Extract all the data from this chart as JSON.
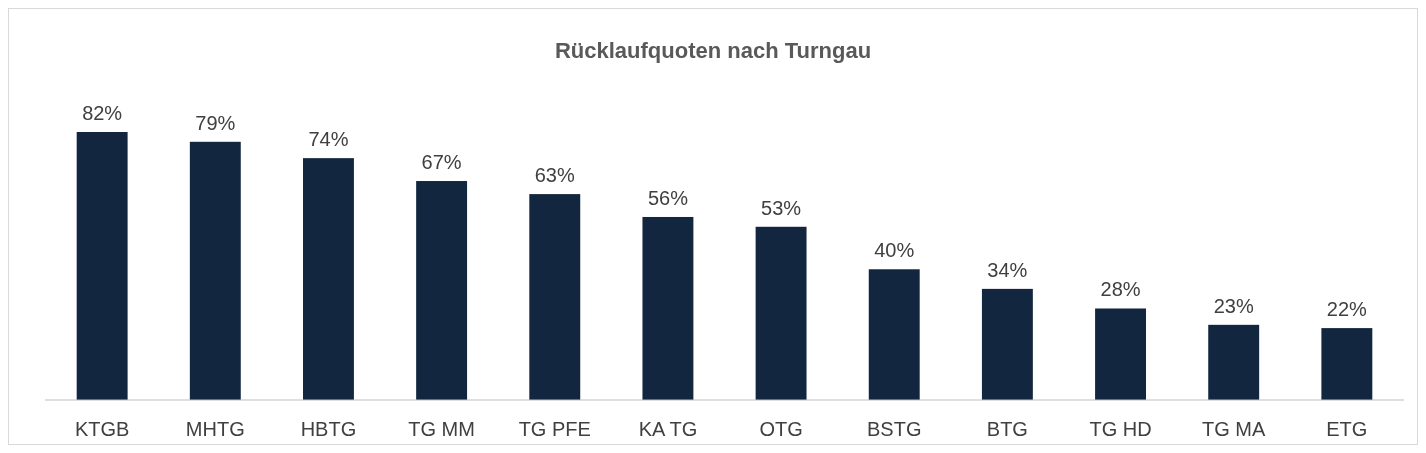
{
  "chart_data": {
    "type": "bar",
    "title": "Rücklaufquoten nach Turngau",
    "categories": [
      "KTGB",
      "MHTG",
      "HBTG",
      "TG MM",
      "TG PFE",
      "KA TG",
      "OTG",
      "BSTG",
      "BTG",
      "TG HD",
      "TG MA",
      "ETG"
    ],
    "values": [
      82,
      79,
      74,
      67,
      63,
      56,
      53,
      40,
      34,
      28,
      23,
      22
    ],
    "value_labels": [
      "82%",
      "79%",
      "74%",
      "67%",
      "63%",
      "56%",
      "53%",
      "40%",
      "34%",
      "28%",
      "23%",
      "22%"
    ],
    "color": "#13263f"
  }
}
